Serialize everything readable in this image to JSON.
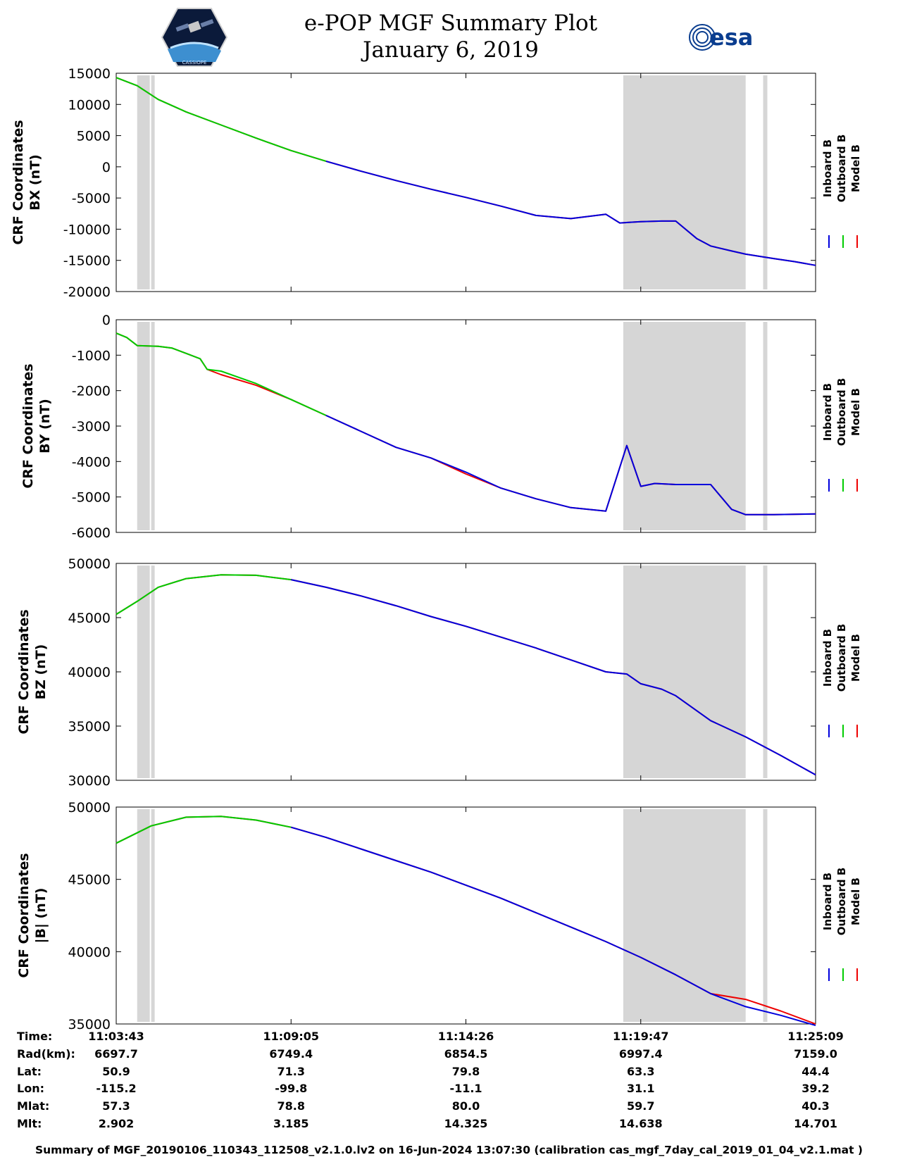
{
  "header": {
    "title": "e-POP MGF Summary Plot",
    "date": "January 6, 2019",
    "left_logo_text": "CASSIOPE",
    "right_logo_text": "esa"
  },
  "colors": {
    "inboard": "#0000dd",
    "outboard": "#00cc00",
    "model": "#ee0000",
    "shade": "#d6d6d6"
  },
  "chart_data": [
    {
      "type": "line",
      "ylabel_line1": "CRF Coordinates",
      "ylabel_line2": "BX (nT)",
      "ylim": [
        -20000,
        15000
      ],
      "yticks": [
        15000,
        10000,
        5000,
        0,
        -5000,
        -10000,
        -15000,
        -20000
      ],
      "legend": [
        "Inboard B",
        "Outboard B",
        "Model B"
      ],
      "x": [
        0,
        0.03,
        0.06,
        0.1,
        0.15,
        0.2,
        0.25,
        0.3,
        0.35,
        0.4,
        0.45,
        0.5,
        0.55,
        0.6,
        0.65,
        0.7,
        0.72,
        0.75,
        0.78,
        0.8,
        0.83,
        0.85,
        0.88,
        0.9,
        0.94,
        0.97,
        1.0
      ],
      "series": [
        {
          "name": "Model B",
          "values": [
            14300,
            13000,
            10800,
            8800,
            6700,
            4600,
            2600,
            900,
            -700,
            -2200,
            -3600,
            -4900,
            -6300,
            -7800,
            -8300,
            -7600,
            -9000,
            -8800,
            -8700,
            -8700,
            -11500,
            -12700,
            -13500,
            -14000,
            -14700,
            -15200,
            -15800
          ]
        },
        {
          "name": "Outboard B",
          "values": [
            14300,
            13000,
            10800,
            8800,
            6700,
            4600,
            2600,
            900,
            null,
            null,
            null,
            null,
            null,
            null,
            null,
            null,
            null,
            null,
            null,
            null,
            null,
            null,
            null,
            null,
            null,
            null,
            null
          ]
        },
        {
          "name": "Inboard B",
          "values": [
            null,
            null,
            null,
            null,
            null,
            null,
            null,
            900,
            -700,
            -2200,
            -3600,
            -4900,
            -6300,
            -7800,
            -8300,
            -7600,
            -9000,
            -8800,
            -8700,
            -8700,
            -11500,
            -12700,
            -13500,
            -14000,
            -14700,
            -15200,
            -15800
          ]
        }
      ]
    },
    {
      "type": "line",
      "ylabel_line1": "CRF Coordinates",
      "ylabel_line2": "BY (nT)",
      "ylim": [
        -6000,
        0
      ],
      "yticks": [
        0,
        -1000,
        -2000,
        -3000,
        -4000,
        -5000,
        -6000
      ],
      "legend": [
        "Inboard B",
        "Outboard B",
        "Model B"
      ],
      "x": [
        0,
        0.015,
        0.03,
        0.06,
        0.08,
        0.1,
        0.12,
        0.13,
        0.15,
        0.2,
        0.25,
        0.3,
        0.35,
        0.4,
        0.45,
        0.5,
        0.55,
        0.6,
        0.65,
        0.7,
        0.73,
        0.75,
        0.77,
        0.8,
        0.85,
        0.88,
        0.9,
        0.94,
        1.0
      ],
      "series": [
        {
          "name": "Model B",
          "values": [
            -380,
            -500,
            -730,
            -750,
            -800,
            -950,
            -1100,
            -1400,
            -1550,
            -1850,
            -2250,
            -2700,
            -3150,
            -3600,
            -3900,
            -4350,
            -4750,
            -5050,
            -5300,
            -5400,
            -3550,
            -4700,
            -4620,
            -4650,
            -4650,
            -5350,
            -5500,
            -5500,
            -5480
          ]
        },
        {
          "name": "Outboard B",
          "values": [
            -380,
            -500,
            -730,
            -750,
            -800,
            -950,
            -1100,
            -1400,
            -1450,
            -1800,
            -2250,
            -2700,
            null,
            null,
            null,
            null,
            null,
            null,
            null,
            null,
            null,
            null,
            null,
            null,
            null,
            null,
            null,
            null,
            null
          ]
        },
        {
          "name": "Inboard B",
          "values": [
            null,
            null,
            null,
            null,
            null,
            null,
            null,
            null,
            null,
            null,
            null,
            -2700,
            -3150,
            -3600,
            -3900,
            -4300,
            -4750,
            -5050,
            -5300,
            -5400,
            -3550,
            -4700,
            -4620,
            -4650,
            -4650,
            -5350,
            -5500,
            -5500,
            -5480
          ]
        }
      ]
    },
    {
      "type": "line",
      "ylabel_line1": "CRF Coordinates",
      "ylabel_line2": "BZ (nT)",
      "ylim": [
        30000,
        50000
      ],
      "yticks": [
        50000,
        45000,
        40000,
        35000,
        30000
      ],
      "legend": [
        "Inboard B",
        "Outboard B",
        "Model B"
      ],
      "x": [
        0,
        0.03,
        0.06,
        0.1,
        0.15,
        0.2,
        0.25,
        0.3,
        0.35,
        0.4,
        0.45,
        0.5,
        0.55,
        0.6,
        0.65,
        0.7,
        0.73,
        0.75,
        0.78,
        0.8,
        0.85,
        0.9,
        0.95,
        1.0
      ],
      "series": [
        {
          "name": "Model B",
          "values": [
            45300,
            46500,
            47800,
            48600,
            48950,
            48900,
            48500,
            47800,
            47000,
            46100,
            45100,
            44200,
            43200,
            42200,
            41100,
            40000,
            39800,
            38900,
            38400,
            37800,
            35500,
            34000,
            32300,
            30500
          ]
        },
        {
          "name": "Outboard B",
          "values": [
            45300,
            46500,
            47800,
            48600,
            48950,
            48900,
            48500,
            null,
            null,
            null,
            null,
            null,
            null,
            null,
            null,
            null,
            null,
            null,
            null,
            null,
            null,
            null,
            null,
            null
          ]
        },
        {
          "name": "Inboard B",
          "values": [
            null,
            null,
            null,
            null,
            null,
            null,
            48500,
            47800,
            47000,
            46100,
            45100,
            44200,
            43200,
            42200,
            41100,
            40000,
            39800,
            38900,
            38400,
            37800,
            35500,
            34000,
            32300,
            30500
          ]
        }
      ]
    },
    {
      "type": "line",
      "ylabel_line1": "CRF Coordinates",
      "ylabel_line2": "|B| (nT)",
      "ylim": [
        35000,
        50000
      ],
      "yticks": [
        50000,
        45000,
        40000,
        35000
      ],
      "legend": [
        "Inboard B",
        "Outboard B",
        "Model B"
      ],
      "x": [
        0,
        0.05,
        0.1,
        0.15,
        0.2,
        0.25,
        0.3,
        0.35,
        0.4,
        0.45,
        0.5,
        0.55,
        0.6,
        0.65,
        0.7,
        0.75,
        0.8,
        0.85,
        0.9,
        0.95,
        1.0
      ],
      "series": [
        {
          "name": "Model B",
          "values": [
            47500,
            48700,
            49300,
            49350,
            49100,
            48600,
            47900,
            47100,
            46300,
            45500,
            44600,
            43700,
            42700,
            41700,
            40700,
            39600,
            38400,
            37100,
            36700,
            35900,
            35000
          ]
        },
        {
          "name": "Outboard B",
          "values": [
            47500,
            48700,
            49300,
            49350,
            49100,
            48600,
            null,
            null,
            null,
            null,
            null,
            null,
            null,
            null,
            null,
            null,
            null,
            null,
            null,
            null,
            null
          ]
        },
        {
          "name": "Inboard B",
          "values": [
            null,
            null,
            null,
            null,
            null,
            48600,
            47900,
            47100,
            46300,
            45500,
            44600,
            43700,
            42700,
            41700,
            40700,
            39600,
            38400,
            37100,
            36200,
            35600,
            34900
          ]
        }
      ]
    }
  ],
  "shaded_intervals": [
    [
      0.03,
      0.055
    ],
    [
      0.725,
      0.9
    ],
    [
      0.925,
      0.931
    ]
  ],
  "x_axis": {
    "ticks": [
      0,
      0.25,
      0.5,
      0.75,
      1.0
    ]
  },
  "orbit_info": {
    "labels": [
      "Time:",
      "Rad(km):",
      "Lat:",
      "Lon:",
      "Mlat:",
      "Mlt:"
    ],
    "columns": [
      [
        "11:03:43",
        "6697.7",
        "50.9",
        "-115.2",
        "57.3",
        "2.902"
      ],
      [
        "11:09:05",
        "6749.4",
        "71.3",
        "-99.8",
        "78.8",
        "3.185"
      ],
      [
        "11:14:26",
        "6854.5",
        "79.8",
        "-11.1",
        "80.0",
        "14.325"
      ],
      [
        "11:19:47",
        "6997.4",
        "63.3",
        "31.1",
        "59.7",
        "14.638"
      ],
      [
        "11:25:09",
        "7159.0",
        "44.4",
        "39.2",
        "40.3",
        "14.701"
      ]
    ]
  },
  "footer": "Summary of MGF_20190106_110343_112508_v2.1.0.lv2 on 16-Jun-2024 13:07:30 (calibration cas_mgf_7day_cal_2019_01_04_v2.1.mat )"
}
